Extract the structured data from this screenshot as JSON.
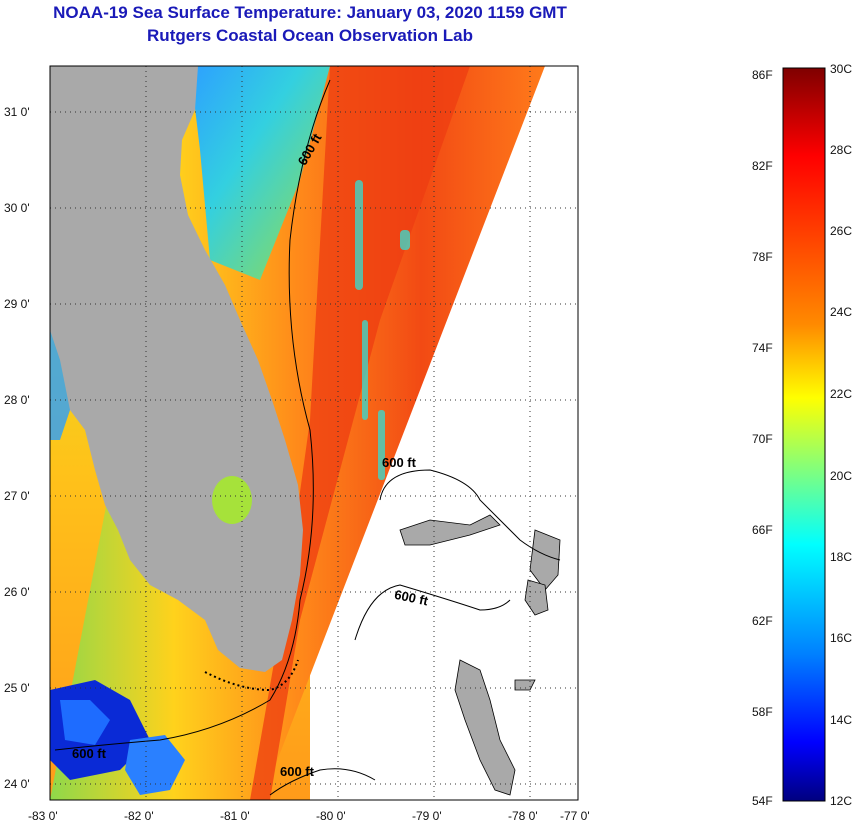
{
  "title": {
    "line1": "NOAA-19 Sea Surface Temperature:  January 03, 2020 1159 GMT",
    "line2": "Rutgers Coastal Ocean Observation Lab"
  },
  "map": {
    "lat_labels": [
      "31 0'",
      "30 0'",
      "29 0'",
      "28 0'",
      "27 0'",
      "26 0'",
      "25 0'",
      "24 0'"
    ],
    "lon_labels": [
      "-83 0'",
      "-82 0'",
      "-81 0'",
      "-80 0'",
      "-79 0'",
      "-78 0'",
      "-77 0'"
    ],
    "contour_labels": [
      "600 ft",
      "600 ft",
      "600 ft",
      "600 ft",
      "600 ft"
    ],
    "colors": {
      "land": "#a9a9a9",
      "no_data": "#ffffff",
      "grid": "#333333"
    }
  },
  "colorbar": {
    "fahrenheit_labels": [
      "86F",
      "82F",
      "78F",
      "74F",
      "70F",
      "66F",
      "62F",
      "58F",
      "54F"
    ],
    "celsius_labels": [
      "30C",
      "28C",
      "26C",
      "24C",
      "22C",
      "20C",
      "18C",
      "16C",
      "14C",
      "12C"
    ],
    "range_c": [
      12,
      30
    ],
    "range_f": [
      54,
      86
    ],
    "scale": "jet"
  }
}
